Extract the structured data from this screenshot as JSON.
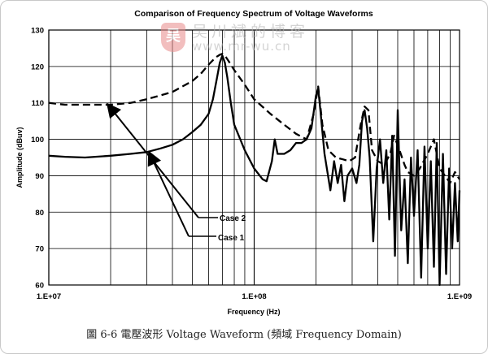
{
  "chart_data": {
    "type": "line",
    "title": "Comparison of Frequency Spectrum of  Voltage Waveforms",
    "xlabel": "Frequency (Hz)",
    "ylabel": "Amplitude (dBuv)",
    "x_scale": "log",
    "xlim": [
      10000000,
      1000000000
    ],
    "ylim": [
      60,
      130
    ],
    "x_ticks": [
      "1.E+07",
      "1.E+08",
      "1.E+09"
    ],
    "y_ticks": [
      60,
      70,
      80,
      90,
      100,
      110,
      120,
      130
    ],
    "grid": true,
    "annotations": [
      "Case 2",
      "Case 1"
    ],
    "series": [
      {
        "name": "Case 2",
        "style": "dashed",
        "x": [
          10000000,
          12000000,
          15000000,
          20000000,
          25000000,
          30000000,
          40000000,
          50000000,
          55000000,
          60000000,
          65000000,
          68000000,
          70000000,
          72000000,
          75000000,
          80000000,
          90000000,
          100000000,
          120000000,
          140000000,
          160000000,
          180000000,
          195000000,
          205000000,
          215000000,
          230000000,
          250000000,
          270000000,
          290000000,
          310000000,
          330000000,
          345000000,
          360000000,
          375000000,
          400000000,
          430000000,
          460000000,
          480000000,
          510000000,
          540000000,
          560000000,
          600000000,
          640000000,
          700000000,
          750000000,
          800000000,
          850000000,
          900000000,
          950000000,
          1000000000
        ],
        "values": [
          110,
          109.5,
          109.5,
          109.5,
          110,
          111,
          113,
          116,
          118,
          120.5,
          122.5,
          123.2,
          123.5,
          123,
          121.5,
          119,
          115,
          111,
          107,
          104,
          101.5,
          100,
          107,
          114.5,
          104,
          97,
          95,
          94.5,
          94,
          95,
          104,
          109,
          108,
          97,
          94,
          93,
          96,
          101,
          97,
          93,
          91,
          90,
          92,
          96,
          100,
          92,
          90,
          88,
          91,
          89
        ]
      },
      {
        "name": "Case 1",
        "style": "solid",
        "x": [
          10000000,
          12000000,
          15000000,
          20000000,
          25000000,
          30000000,
          35000000,
          40000000,
          45000000,
          50000000,
          55000000,
          60000000,
          63000000,
          66000000,
          68000000,
          70000000,
          72000000,
          74000000,
          77000000,
          80000000,
          90000000,
          100000000,
          110000000,
          115000000,
          122000000,
          126000000,
          130000000,
          140000000,
          150000000,
          160000000,
          170000000,
          180000000,
          190000000,
          200000000,
          205000000,
          210000000,
          220000000,
          235000000,
          245000000,
          255000000,
          265000000,
          275000000,
          285000000,
          300000000,
          315000000,
          325000000,
          335000000,
          345000000,
          355000000,
          365000000,
          380000000,
          395000000,
          410000000,
          425000000,
          440000000,
          455000000,
          470000000,
          485000000,
          500000000,
          520000000,
          540000000,
          560000000,
          580000000,
          600000000,
          625000000,
          650000000,
          675000000,
          700000000,
          725000000,
          750000000,
          775000000,
          800000000,
          830000000,
          860000000,
          890000000,
          920000000,
          950000000,
          980000000,
          1000000000
        ],
        "values": [
          95.5,
          95.2,
          95,
          95.5,
          96,
          96.5,
          97.5,
          98.5,
          100,
          102,
          104,
          107,
          111,
          117,
          121,
          123,
          121,
          117,
          110,
          104,
          97,
          92,
          89,
          88.5,
          94,
          100,
          96,
          96,
          97,
          99,
          99,
          100,
          103,
          112,
          114,
          108,
          96,
          86,
          94,
          88,
          93,
          83,
          90,
          92,
          88,
          93,
          105,
          108,
          103,
          95,
          72,
          92,
          100,
          88,
          97,
          78,
          101,
          68,
          108,
          75,
          89,
          66,
          95,
          79,
          97,
          62,
          98,
          70,
          94,
          65,
          99,
          60,
          96,
          63,
          92,
          70,
          88,
          72,
          86
        ]
      }
    ]
  },
  "watermark": {
    "logo_glyph": "吴",
    "name": "吴川斌的博客",
    "url": "www.mr-wu.cn"
  },
  "caption": "圖 6-6  電壓波形 Voltage Waveform (頻域  Frequency Domain)"
}
